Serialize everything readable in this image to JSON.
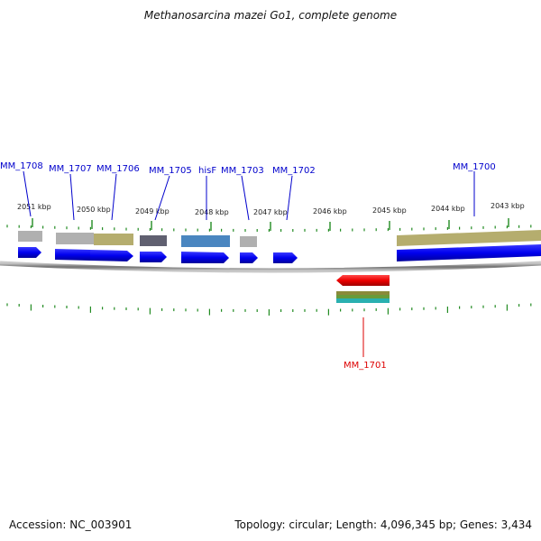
{
  "title": "Methanosarcina mazei Go1, complete genome",
  "footer": {
    "accession": "Accession: NC_003901",
    "summary": "Topology: circular; Length: 4,096,345 bp; Genes: 3,434"
  },
  "kbp_ticks": [
    {
      "label": "2051 kbp"
    },
    {
      "label": "2050 kbp"
    },
    {
      "label": "2049 kbp"
    },
    {
      "label": "2048 kbp"
    },
    {
      "label": "2047 kbp"
    },
    {
      "label": "2046 kbp"
    },
    {
      "label": "2045 kbp"
    },
    {
      "label": "2044 kbp"
    },
    {
      "label": "2043 kbp"
    }
  ],
  "genes": [
    {
      "label": "MM_1708",
      "strand": "+",
      "color": "#0000cc"
    },
    {
      "label": "MM_1707",
      "strand": "+",
      "color": "#0000cc"
    },
    {
      "label": "MM_1706",
      "strand": "+",
      "color": "#0000cc"
    },
    {
      "label": "MM_1705",
      "strand": "+",
      "color": "#0000cc"
    },
    {
      "label": "hisF",
      "strand": "+",
      "color": "#0000cc"
    },
    {
      "label": "MM_1703",
      "strand": "+",
      "color": "#0000cc"
    },
    {
      "label": "MM_1702",
      "strand": "+",
      "color": "#0000cc"
    },
    {
      "label": "MM_1701",
      "strand": "-",
      "color": "#dd0000"
    },
    {
      "label": "MM_1700",
      "strand": "+",
      "color": "#0000cc"
    }
  ],
  "colors": {
    "forward_gene": "#0000ee",
    "reverse_gene": "#ee0000",
    "backbone": "#808080",
    "tick": "#228b22",
    "cog_gray": "#b0b0b0",
    "cog_khaki": "#b5ad6e",
    "cog_dark": "#606070",
    "cog_steelblue": "#4a86c0",
    "cog_olive": "#8a8a3a",
    "cog_teal": "#2ab0b0"
  }
}
